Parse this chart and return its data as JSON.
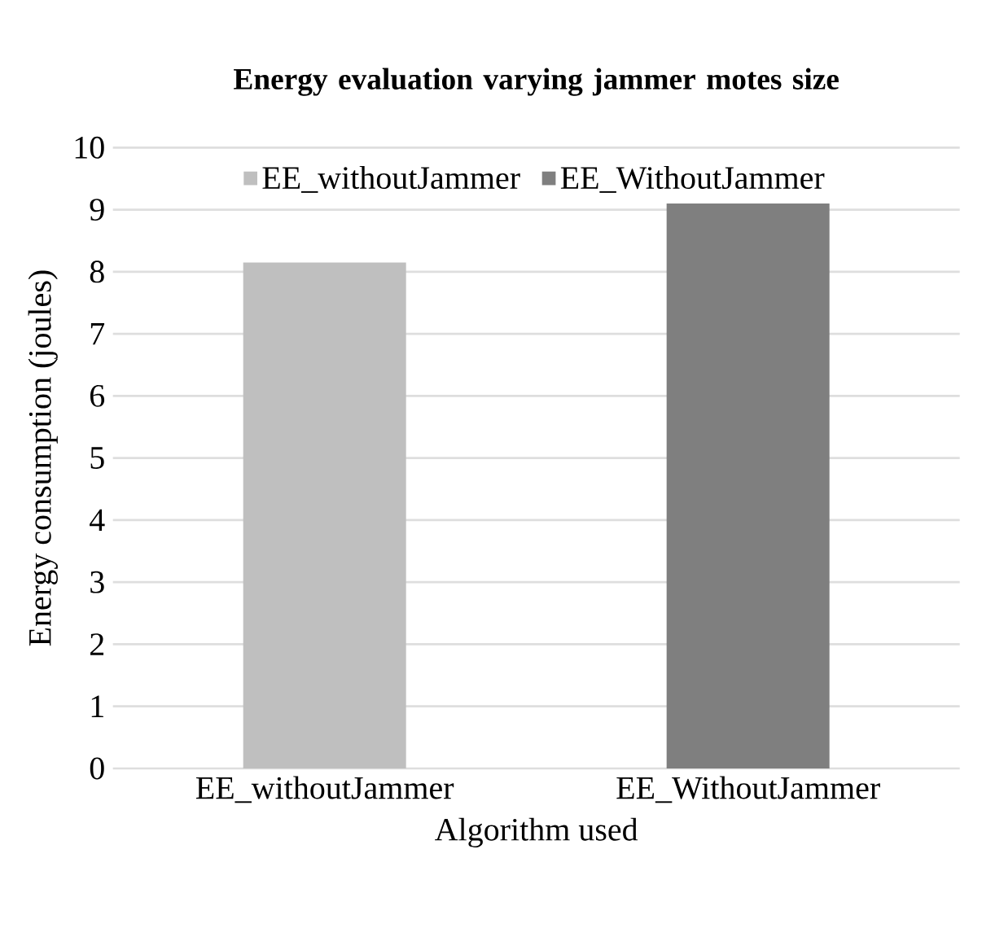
{
  "chart_data": {
    "type": "bar",
    "title": "Energy evaluation varying jammer motes size",
    "categories": [
      "EE_withoutJammer",
      "EE_WithoutJammer"
    ],
    "series": [
      {
        "name": "EE_withoutJammer",
        "color": "#bfbfbf",
        "values": [
          8.15,
          null
        ]
      },
      {
        "name": "EE_WithoutJammer",
        "color": "#7f7f7f",
        "values": [
          null,
          9.1
        ]
      }
    ],
    "xlabel": "Algorithm used",
    "ylabel": "Energy consumption (joules)",
    "ylim": [
      0,
      10
    ],
    "yticks": [
      0,
      1,
      2,
      3,
      4,
      5,
      6,
      7,
      8,
      9,
      10
    ],
    "grid": "y",
    "legend": "top"
  }
}
